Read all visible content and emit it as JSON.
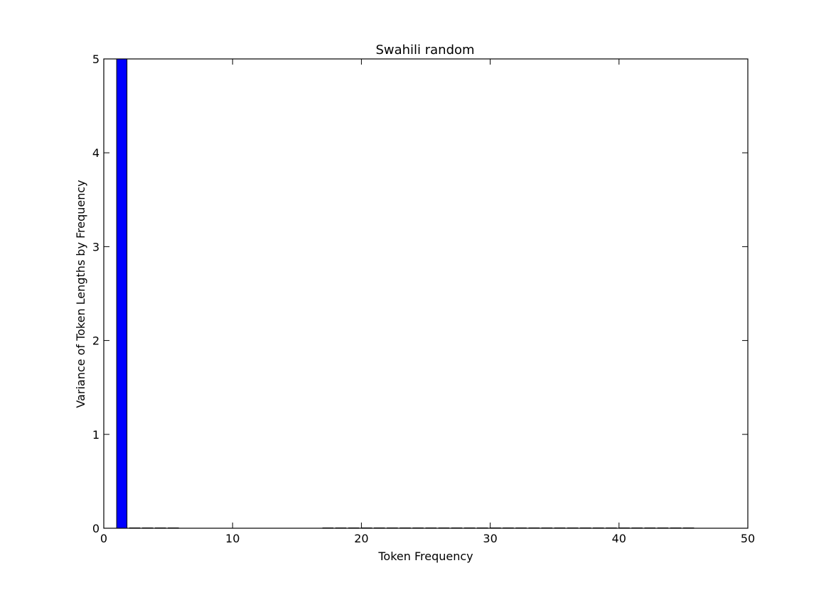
{
  "chart_data": {
    "type": "bar",
    "title": "Swahili random",
    "xlabel": "Token Frequency",
    "ylabel": "Variance of Token Lengths by Frequency",
    "xlim": [
      0,
      50
    ],
    "ylim": [
      0,
      5
    ],
    "xticks": [
      "0",
      "10",
      "20",
      "30",
      "40",
      "50"
    ],
    "yticks": [
      "0",
      "1",
      "2",
      "3",
      "4",
      "5"
    ],
    "bar_width": 0.8,
    "bar_color": "#0000ff",
    "series": [
      {
        "x": [
          1,
          2,
          3,
          4,
          5,
          17,
          18,
          19,
          20,
          21,
          22,
          23,
          24,
          25,
          26,
          27,
          28,
          29,
          30,
          31,
          32,
          33,
          34,
          35,
          36,
          37,
          38,
          39,
          40,
          41,
          42,
          43,
          44,
          45
        ],
        "values": [
          5,
          0,
          0,
          0,
          0,
          0,
          0,
          0,
          0,
          0,
          0,
          0,
          0,
          0,
          0,
          0,
          0,
          0,
          0,
          0,
          0,
          0,
          0,
          0,
          0,
          0,
          0,
          0,
          0,
          0,
          0,
          0,
          0,
          0
        ]
      }
    ],
    "grid": false,
    "legend": "none"
  }
}
